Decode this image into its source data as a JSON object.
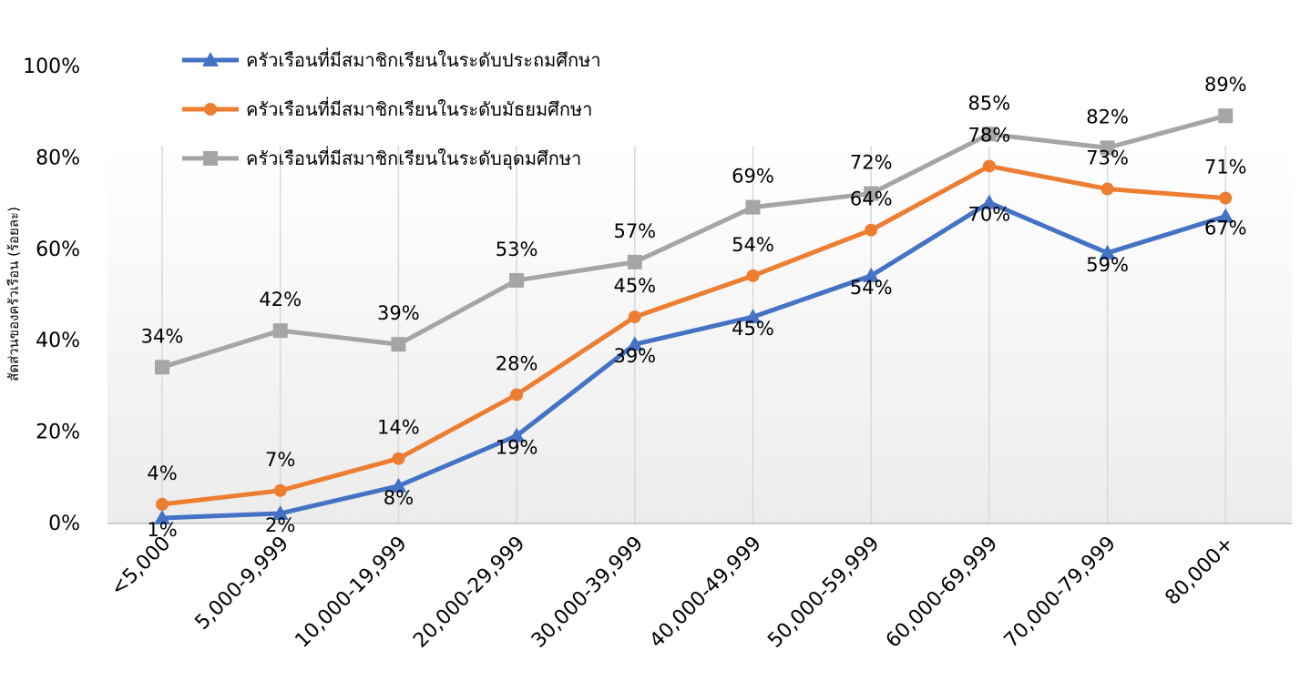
{
  "chart_data": {
    "type": "line",
    "title": "",
    "xlabel": "",
    "ylabel": "สัดส่วนของครัวเรือน (ร้อยละ)",
    "categories": [
      "<5,000",
      "5,000-9,999",
      "10,000-19,999",
      "20,000-29,999",
      "30,000-39,999",
      "40,000-49,999",
      "50,000-59,999",
      "60,000-69,999",
      "70,000-79,999",
      "80,000+"
    ],
    "ylim": [
      0,
      100
    ],
    "yticks": [
      "0%",
      "20%",
      "40%",
      "60%",
      "80%",
      "100%"
    ],
    "grid": "vertical lines at categories",
    "legend_position": "top-left",
    "series": [
      {
        "name": "ครัวเรือนที่มีสมาชิกเรียนในระดับประถมศึกษา",
        "color": "#4472C4",
        "marker": "triangle",
        "values": [
          1,
          2,
          8,
          19,
          39,
          45,
          54,
          70,
          59,
          67
        ],
        "labels": [
          "1%",
          "2%",
          "8%",
          "19%",
          "39%",
          "45%",
          "54%",
          "70%",
          "59%",
          "67%"
        ]
      },
      {
        "name": "ครัวเรือนที่มีสมาชิกเรียนในระดับมัธยมศึกษา",
        "color": "#ED7D31",
        "marker": "circle",
        "values": [
          4,
          7,
          14,
          28,
          45,
          54,
          64,
          78,
          73,
          71
        ],
        "labels": [
          "4%",
          "7%",
          "14%",
          "28%",
          "45%",
          "54%",
          "64%",
          "78%",
          "73%",
          "71%"
        ]
      },
      {
        "name": "ครัวเรือนที่มีสมาชิกเรียนในระดับอุดมศึกษา",
        "color": "#A5A5A5",
        "marker": "square",
        "values": [
          34,
          42,
          39,
          53,
          57,
          69,
          72,
          85,
          82,
          89
        ],
        "labels": [
          "34%",
          "42%",
          "39%",
          "53%",
          "57%",
          "69%",
          "72%",
          "85%",
          "82%",
          "89%"
        ]
      }
    ]
  }
}
